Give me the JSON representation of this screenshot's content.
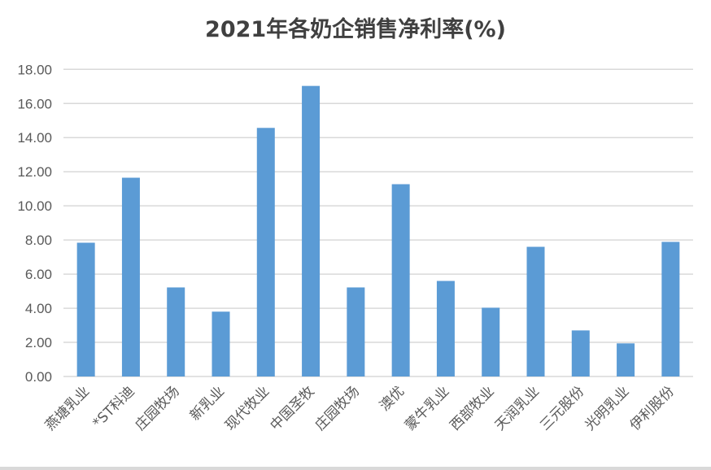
{
  "chart_data": {
    "type": "bar",
    "title": "2021年各奶企销售净利率(%)",
    "categories": [
      "燕塘乳业",
      "*ST科迪",
      "庄园牧场",
      "新乳业",
      "现代牧业",
      "中国圣牧",
      "庄园牧场",
      "澳优",
      "蒙牛乳业",
      "西部牧业",
      "天润乳业",
      "三元股份",
      "光明乳业",
      "伊利股份"
    ],
    "values": [
      7.84,
      11.65,
      5.22,
      3.8,
      14.57,
      17.03,
      5.22,
      11.27,
      5.6,
      4.03,
      7.6,
      2.7,
      1.94,
      7.89
    ],
    "ylim": [
      0,
      18
    ],
    "yticks": [
      "0.00",
      "2.00",
      "4.00",
      "6.00",
      "8.00",
      "10.00",
      "12.00",
      "14.00",
      "16.00",
      "18.00"
    ],
    "xlabel": "",
    "ylabel": "",
    "grid": true,
    "legend": "none",
    "bar_color": "#5b9bd5",
    "grid_color": "#d9d9d9"
  }
}
